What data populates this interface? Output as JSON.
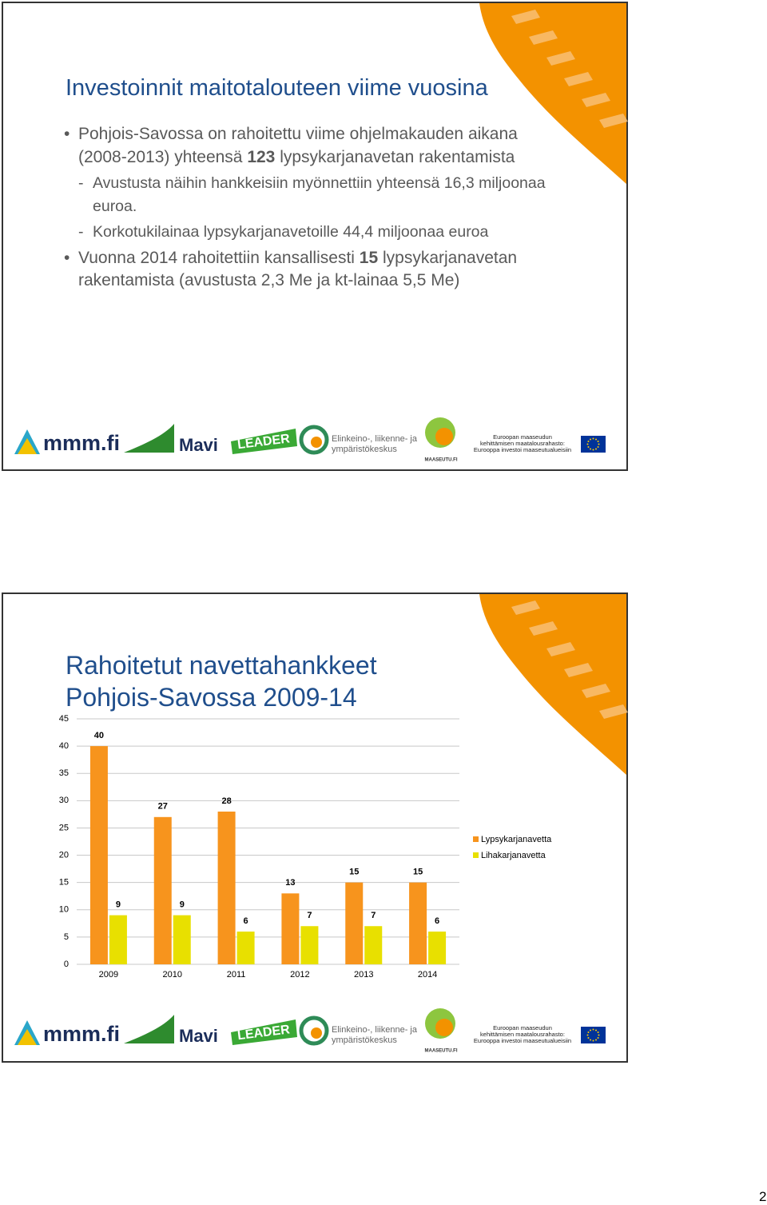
{
  "slide1": {
    "title": "Investoinnit maitotalouteen viime vuosina",
    "bullets": [
      {
        "level": 1,
        "parts": [
          "Pohjois-Savossa on rahoitettu viime ohjelmakauden aikana (2008-2013) yhteensä ",
          "123",
          " lypsykarjanavetan rakentamista"
        ]
      },
      {
        "level": 2,
        "parts": [
          "Avustusta näihin hankkeisiin myönnettiin yhteensä 16,3 miljoonaa euroa."
        ]
      },
      {
        "level": 2,
        "parts": [
          "Korkotukilainaa lypsykarjanavetoille 44,4 miljoonaa euroa"
        ]
      },
      {
        "level": 1,
        "parts": [
          "Vuonna 2014 rahoitettiin kansallisesti ",
          "15",
          " lypsykarjanavetan rakentamista (avustusta 2,3 Me ja kt-lainaa 5,5 Me)"
        ]
      }
    ]
  },
  "chart_data": {
    "type": "bar",
    "title": "Rahoitetut navettahankkeet Pohjois-Savossa 2009-14",
    "categories": [
      "2009",
      "2010",
      "2011",
      "2012",
      "2013",
      "2014"
    ],
    "series": [
      {
        "name": "Lypsykarjanavetta",
        "color": "#f7941d",
        "values": [
          40,
          27,
          28,
          13,
          15,
          15
        ]
      },
      {
        "name": "Lihakarjanavetta",
        "color": "#e8e000",
        "values": [
          9,
          9,
          6,
          7,
          7,
          6
        ]
      }
    ],
    "ylim": [
      0,
      45
    ],
    "yticks": [
      0,
      5,
      10,
      15,
      20,
      25,
      30,
      35,
      40,
      45
    ],
    "grid": true,
    "legend": "right"
  },
  "footer": {
    "mmm": "mmm.fi",
    "mavi": "Mavi",
    "leader": "LEADER",
    "ely": [
      "Elinkeino-, liikenne- ja",
      "ympäristökeskus"
    ],
    "maaseutu": "MAASEUTU.FI",
    "eu": [
      "Euroopan maaseudun",
      "kehittämisen maatalousrahasto:",
      "Eurooppa investoi maaseutualueisiin"
    ]
  },
  "page_number": "2"
}
